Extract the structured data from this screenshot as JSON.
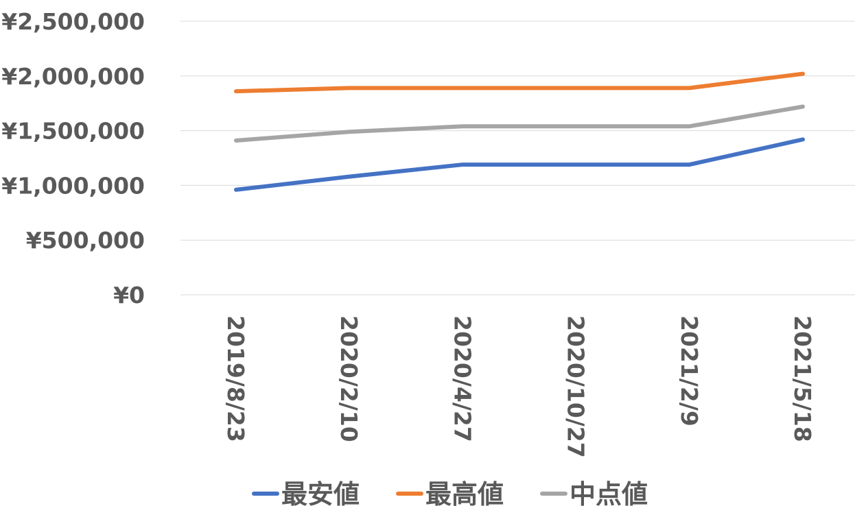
{
  "chart_data": {
    "type": "line",
    "categories": [
      "2019/8/23",
      "2020/2/10",
      "2020/4/27",
      "2020/10/27",
      "2021/2/9",
      "2021/5/18"
    ],
    "series": [
      {
        "name": "最安値",
        "color": "#4472C4",
        "values": [
          960000,
          1080000,
          1190000,
          1190000,
          1190000,
          1420000
        ]
      },
      {
        "name": "最高値",
        "color": "#ED7D31",
        "values": [
          1860000,
          1890000,
          1890000,
          1890000,
          1890000,
          2020000
        ]
      },
      {
        "name": "中点値",
        "color": "#A5A5A5",
        "values": [
          1410000,
          1490000,
          1540000,
          1540000,
          1540000,
          1720000
        ]
      }
    ],
    "ylim": [
      0,
      2500000
    ],
    "yticks": [
      "¥0",
      "¥500,000",
      "¥1,000,000",
      "¥1,500,000",
      "¥2,000,000",
      "¥2,500,000"
    ],
    "grid": true,
    "legend_position": "bottom",
    "title": "",
    "xlabel": "",
    "ylabel": ""
  }
}
